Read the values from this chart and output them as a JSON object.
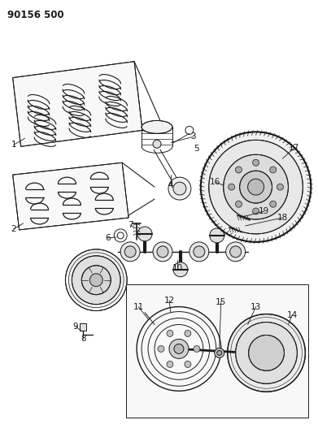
{
  "title": "90156 500",
  "bg_color": "#ffffff",
  "line_color": "#1a1a1a",
  "lw": 0.7,
  "fig_w": 3.91,
  "fig_h": 5.33,
  "dpi": 100
}
